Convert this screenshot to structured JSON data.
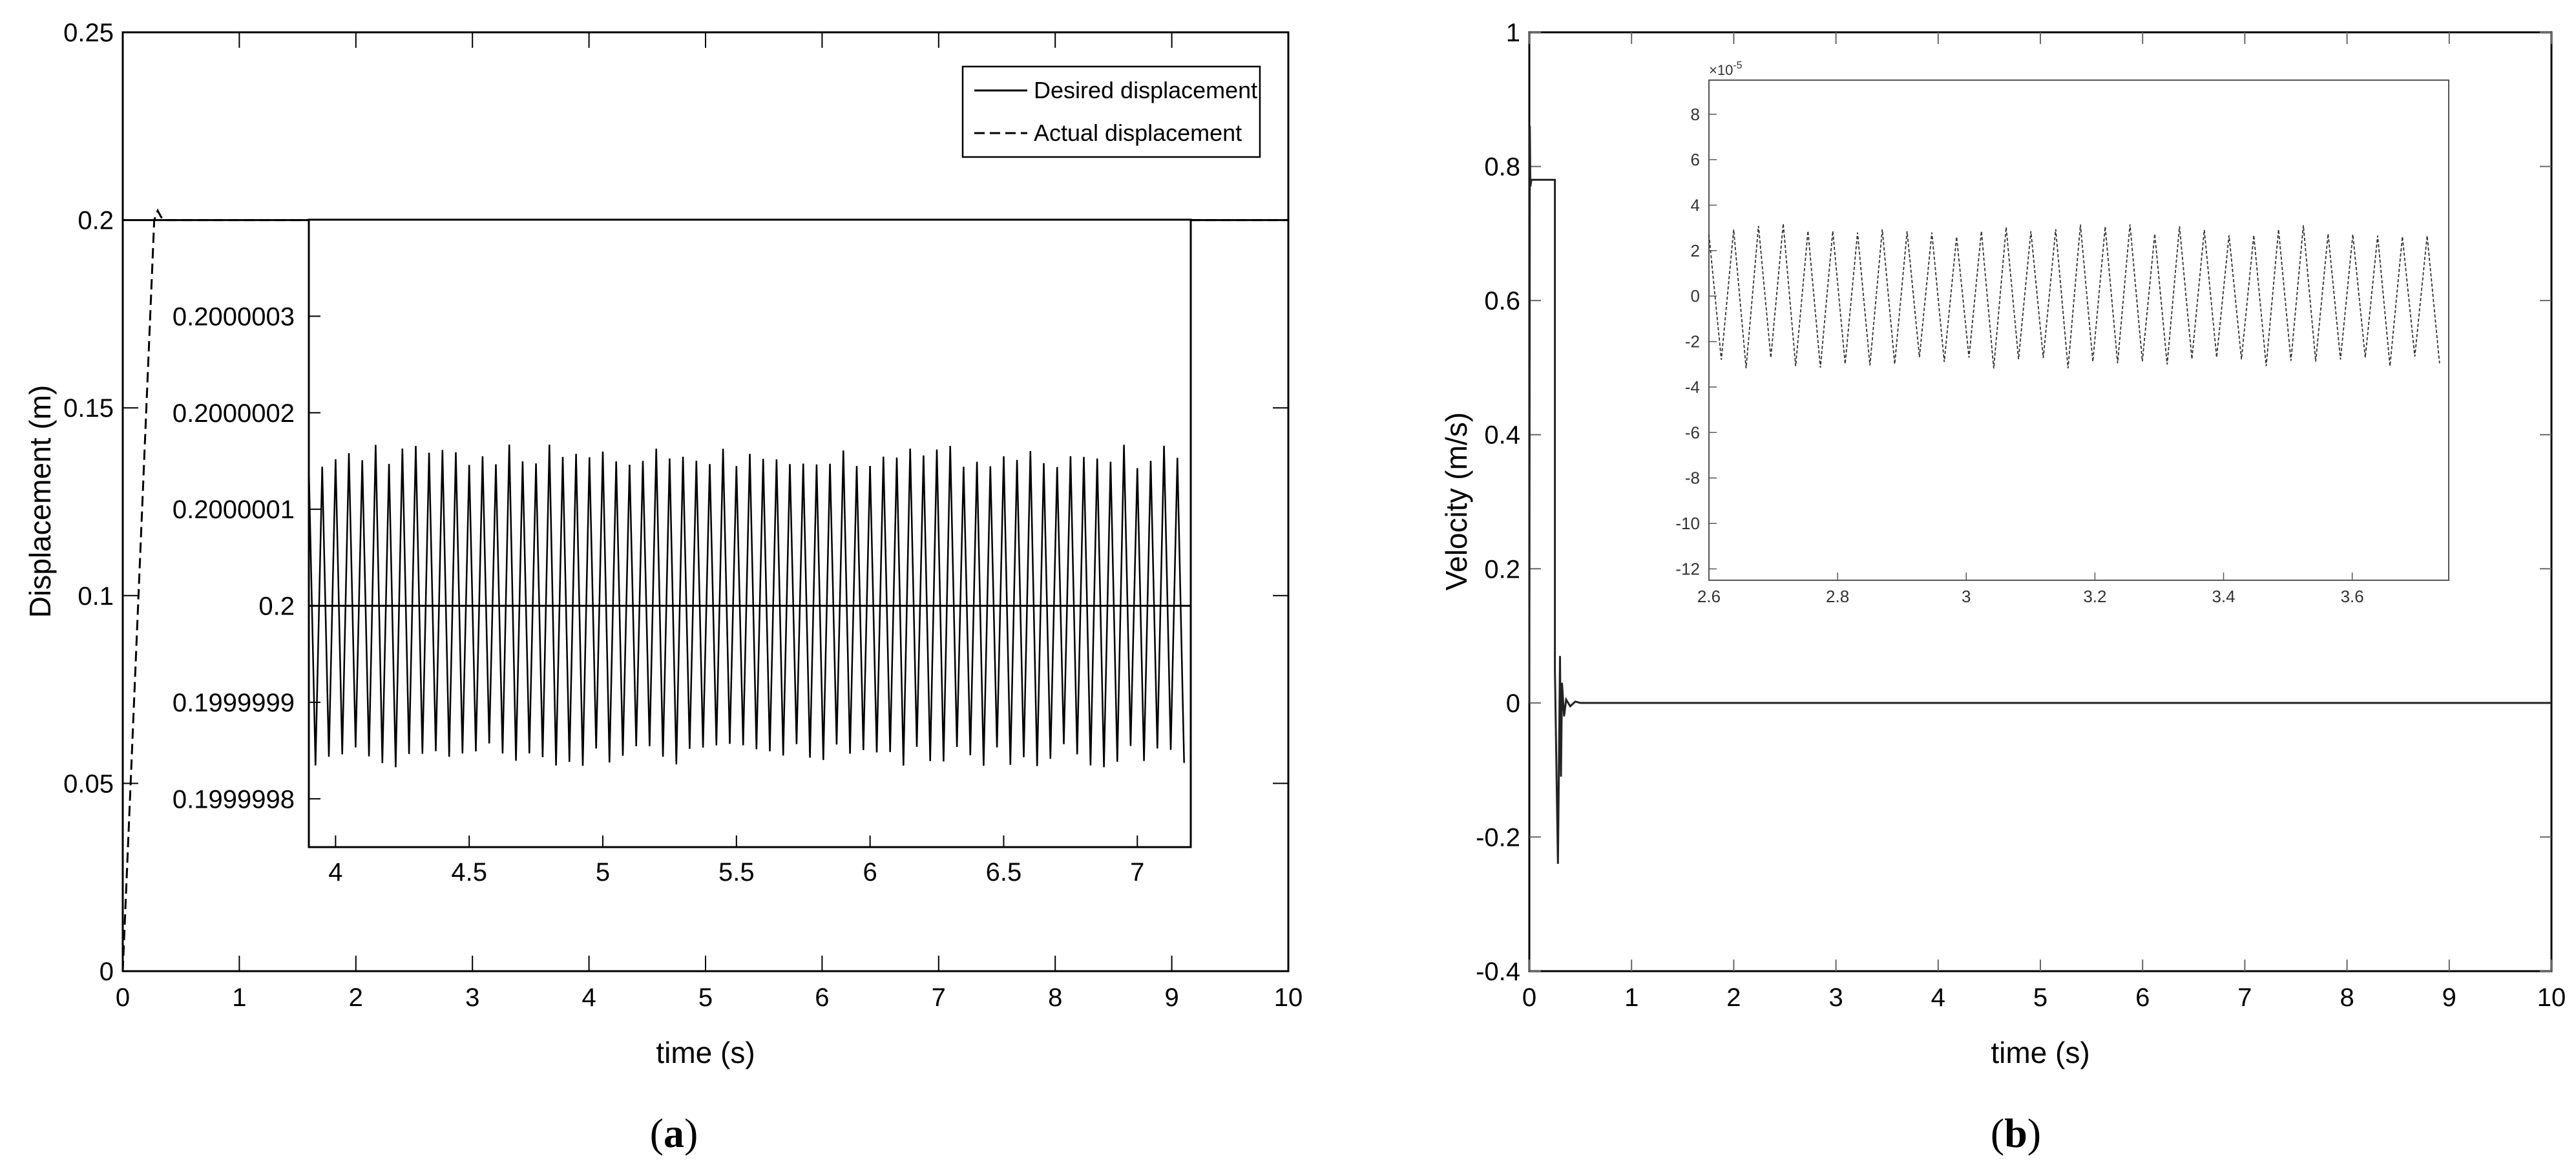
{
  "chart_data": [
    {
      "panel": "a",
      "type": "line",
      "xlabel": "time (s)",
      "ylabel": "Displacement (m)",
      "xlim": [
        0,
        10
      ],
      "ylim": [
        0,
        0.25
      ],
      "xticks": [
        "0",
        "1",
        "2",
        "3",
        "4",
        "5",
        "6",
        "7",
        "8",
        "9",
        "10"
      ],
      "yticks": [
        "0",
        "0.05",
        "0.1",
        "0.15",
        "0.2",
        "0.25"
      ],
      "legend": {
        "placement": "top-right",
        "entries": [
          "Desired displacement",
          "Actual displacement"
        ]
      },
      "series": [
        {
          "name": "Desired displacement",
          "style": "solid",
          "x": [
            0,
            10
          ],
          "y": [
            0.2,
            0.2
          ]
        },
        {
          "name": "Actual displacement",
          "style": "dashed",
          "x": [
            0,
            0.27,
            0.3,
            0.33,
            0.36,
            0.4,
            10
          ],
          "y": [
            0,
            0.2,
            0.2025,
            0.2008,
            0.2,
            0.2,
            0.2
          ]
        }
      ],
      "inset": {
        "xlim": [
          3.9,
          7.2
        ],
        "ylim": [
          0.19999975,
          0.2000004
        ],
        "xticks": [
          "4",
          "4.5",
          "5",
          "5.5",
          "6",
          "6.5",
          "7"
        ],
        "yticks": [
          "0.1999998",
          "0.1999999",
          "0.2",
          "0.2000001",
          "0.2000002",
          "0.2000003"
        ],
        "oscillation": {
          "center": 0.2,
          "amplitude": 1.55e-07,
          "period": 0.05
        }
      }
    },
    {
      "panel": "b",
      "type": "line",
      "xlabel": "time (s)",
      "ylabel": "Velocity (m/s)",
      "xlim": [
        0,
        10
      ],
      "ylim": [
        -0.4,
        1
      ],
      "xticks": [
        "0",
        "1",
        "2",
        "3",
        "4",
        "5",
        "6",
        "7",
        "8",
        "9",
        "10"
      ],
      "yticks": [
        "-0.4",
        "-0.2",
        "0",
        "0.2",
        "0.4",
        "0.6",
        "0.8",
        "1"
      ],
      "series": [
        {
          "style": "solid",
          "x": [
            0,
            0.005,
            0.01,
            0.02,
            0.03,
            0.05,
            0.25,
            0.25,
            0.28,
            0.3,
            0.31,
            0.32,
            0.34,
            0.36,
            0.4,
            0.45,
            0.5,
            10
          ],
          "y": [
            0,
            0.86,
            0.77,
            0.78,
            0.78,
            0.78,
            0.78,
            0.05,
            -0.24,
            0.07,
            -0.11,
            0.03,
            -0.02,
            0.005,
            -0.005,
            0.002,
            0,
            0
          ]
        }
      ],
      "inset": {
        "xlim": [
          2.6,
          3.75
        ],
        "ylim": [
          -12.5,
          9.5
        ],
        "xticks": [
          "2.6",
          "2.8",
          "3",
          "3.2",
          "3.4",
          "3.6"
        ],
        "yticks": [
          "-12",
          "-10",
          "-8",
          "-6",
          "-4",
          "-2",
          "0",
          "2",
          "4",
          "6",
          "8"
        ],
        "exponent": "×10",
        "exponent_power": "-5",
        "oscillation": {
          "center": 0,
          "amplitude": 2.9,
          "period": 0.0385
        }
      }
    }
  ],
  "captions": {
    "a": "a",
    "b": "b"
  }
}
